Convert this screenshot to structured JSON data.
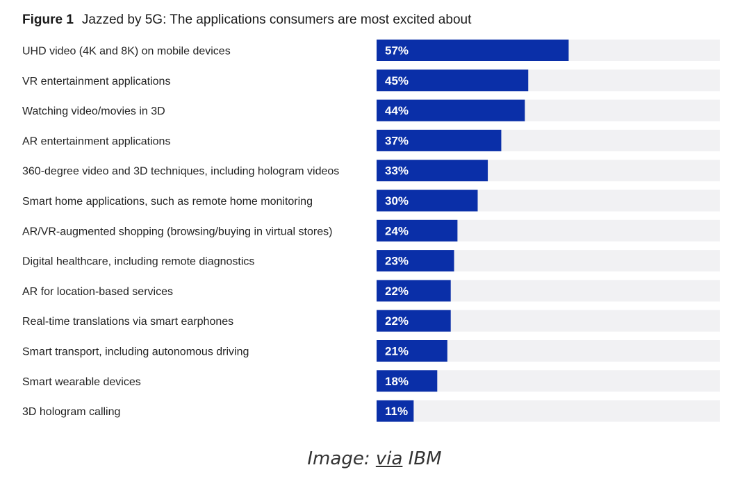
{
  "title": {
    "figure_label": "Figure 1",
    "text": "Jazzed by 5G: The applications consumers are most excited about"
  },
  "caption": {
    "prefix": "Image: ",
    "link_text": "via",
    "suffix": " IBM"
  },
  "colors": {
    "bar": "#0a2fa8",
    "track": "#f1f1f3",
    "label_text": "#222222",
    "value_text": "#ffffff"
  },
  "chart_data": {
    "type": "bar",
    "orientation": "horizontal",
    "title": "Jazzed by 5G: The applications consumers are most excited about",
    "xlim": [
      0,
      100
    ],
    "grid": false,
    "categories": [
      "UHD video (4K and 8K) on mobile devices",
      "VR entertainment applications",
      "Watching video/movies in 3D",
      "AR entertainment applications",
      "360-degree video and 3D techniques, including hologram videos",
      "Smart home applications, such as remote home monitoring",
      "AR/VR-augmented shopping (browsing/buying in virtual stores)",
      "Digital healthcare, including remote diagnostics",
      "AR for location-based services",
      "Real-time translations via smart earphones",
      "Smart transport, including autonomous driving",
      "Smart wearable devices",
      "3D hologram calling"
    ],
    "values": [
      57,
      45,
      44,
      37,
      33,
      30,
      24,
      23,
      22,
      22,
      21,
      18,
      11
    ],
    "value_labels": [
      "57%",
      "45%",
      "44%",
      "37%",
      "33%",
      "30%",
      "24%",
      "23%",
      "22%",
      "22%",
      "21%",
      "18%",
      "11%"
    ]
  }
}
